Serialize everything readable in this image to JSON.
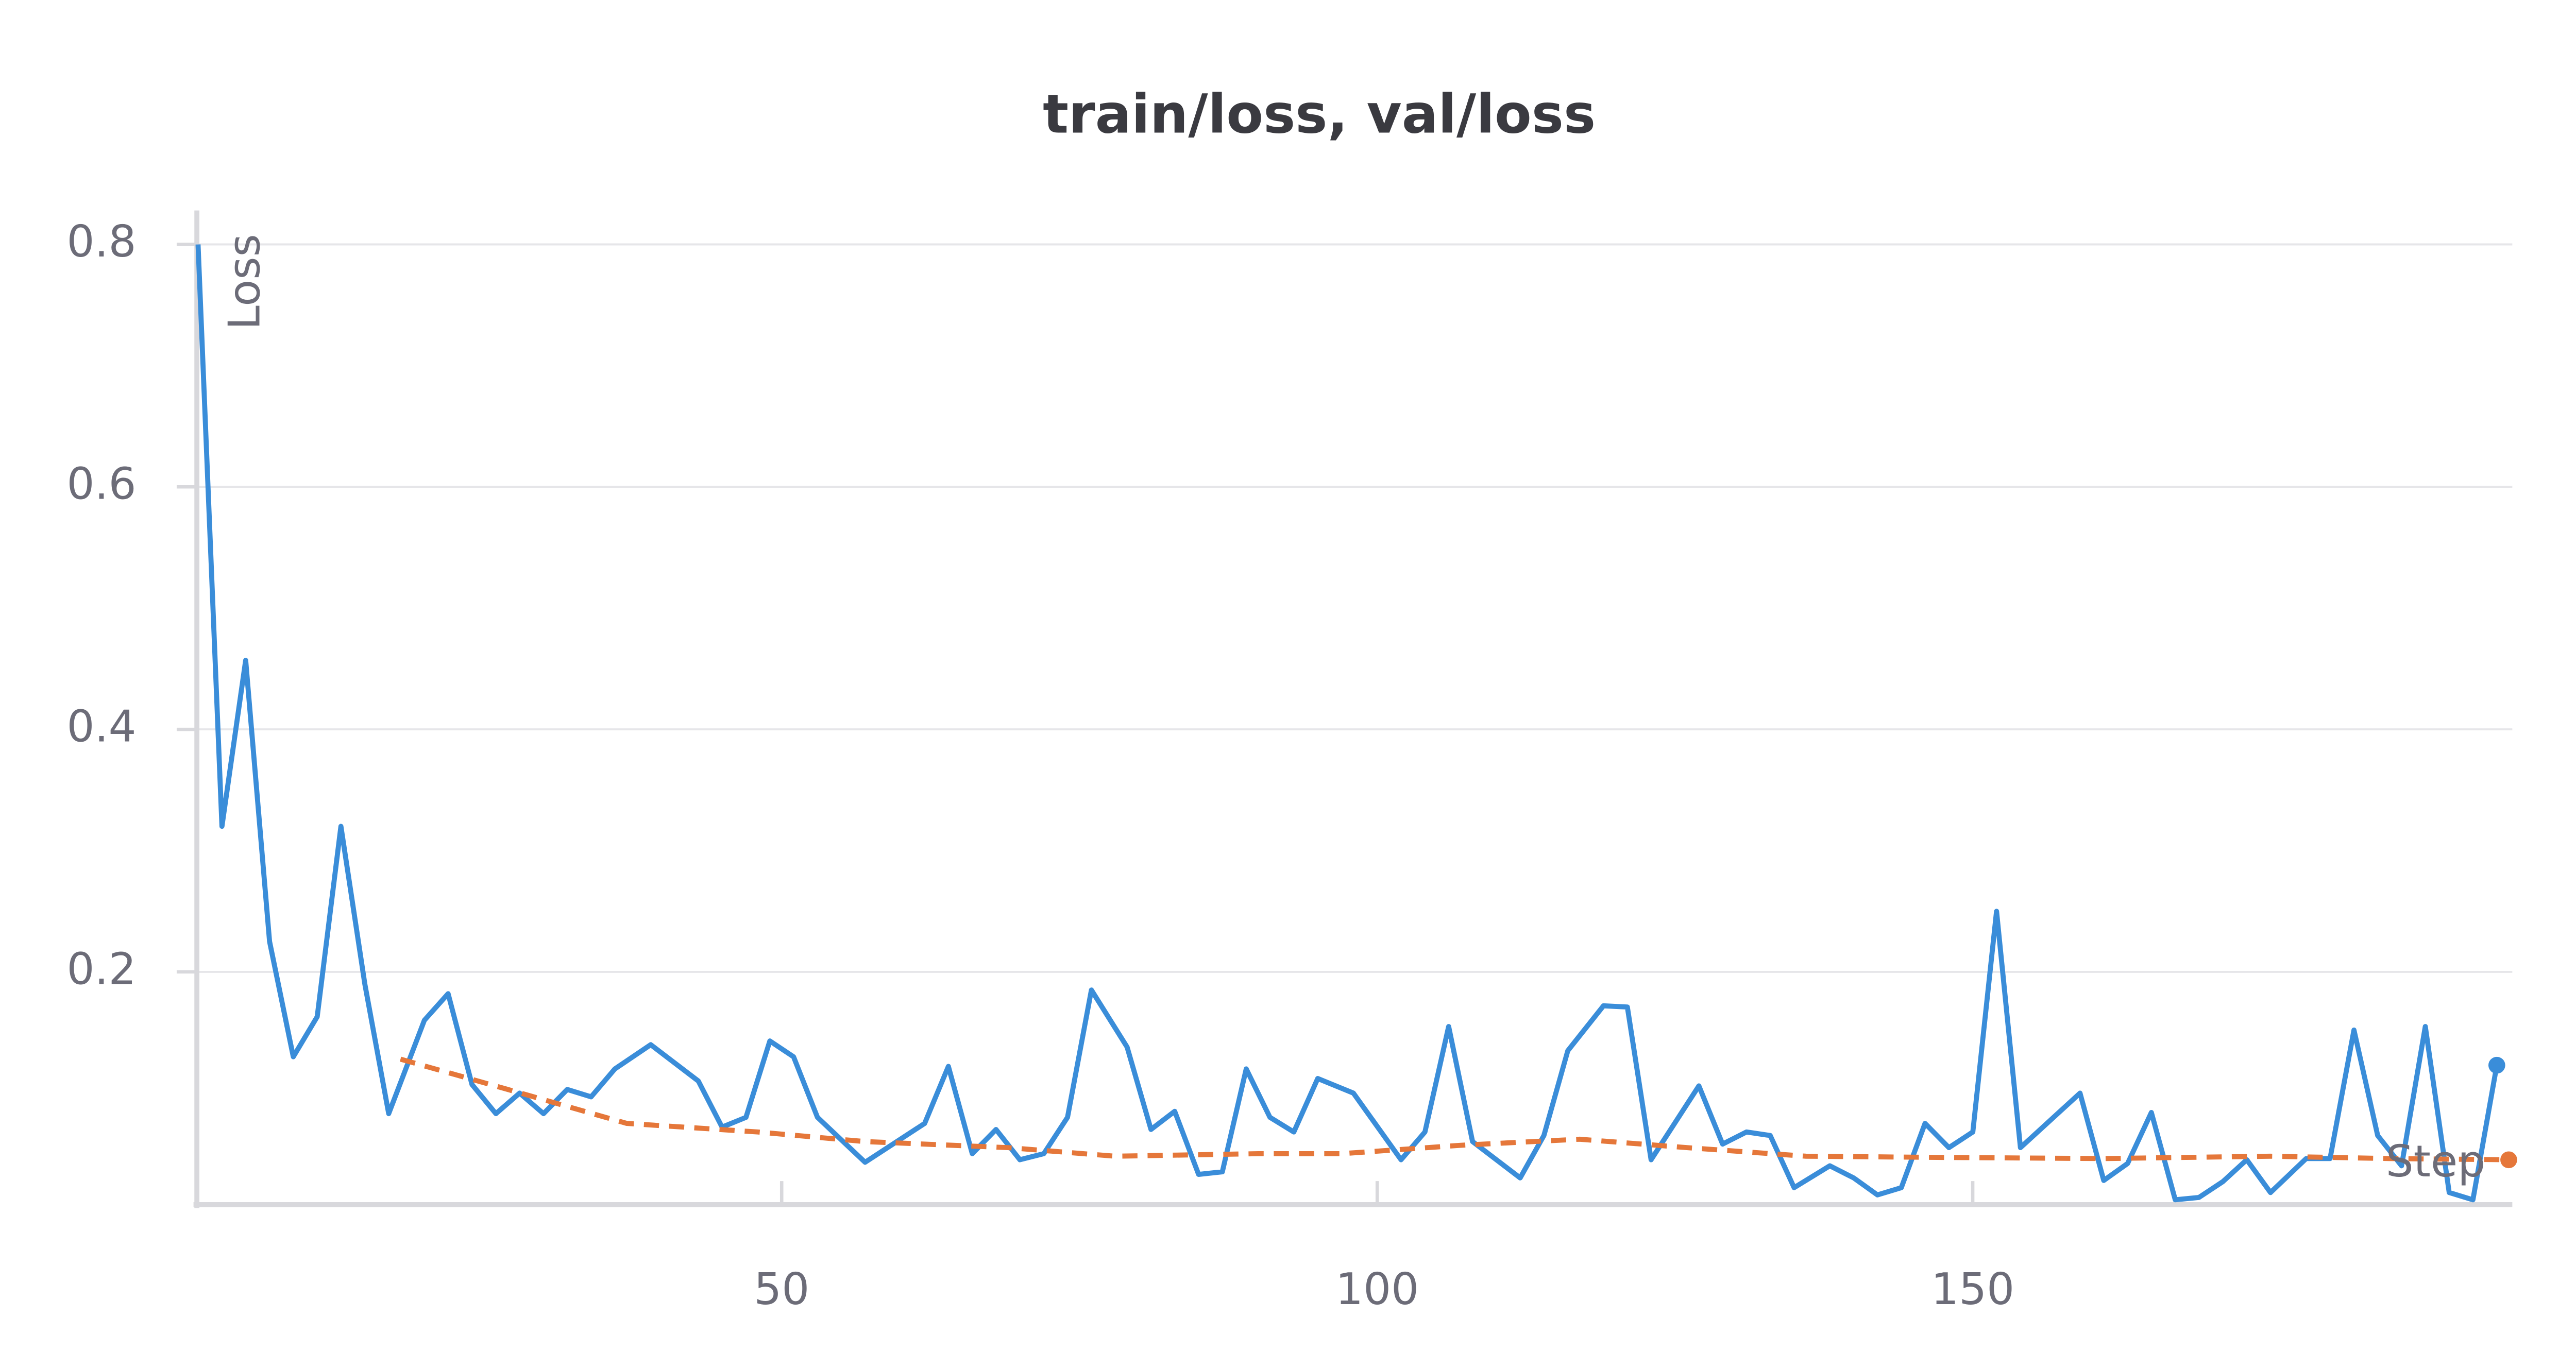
{
  "chart_data": {
    "type": "line",
    "title": "train/loss, val/loss",
    "x_label": "Step",
    "y_label": "Loss",
    "xlim": [
      0.9,
      195.3
    ],
    "ylim": [
      0.008,
      0.828
    ],
    "xticks": [
      50,
      100,
      150
    ],
    "yticks": [
      0.2,
      0.4,
      0.6,
      0.8
    ],
    "grid": true,
    "series": [
      {
        "name": "train/loss",
        "color": "#3a8dd9",
        "dashed": false,
        "x": [
          1,
          3,
          5,
          7,
          9,
          11,
          13,
          15,
          17,
          20,
          22,
          24,
          26,
          28,
          30,
          32,
          34,
          36,
          39,
          43,
          45,
          47,
          49,
          51,
          53,
          57,
          62,
          64,
          66,
          68,
          70,
          72,
          74,
          76,
          79,
          81,
          83,
          85,
          87,
          89,
          91,
          93,
          95,
          98,
          102,
          104,
          106,
          108,
          112,
          114,
          116,
          119,
          121,
          123,
          127,
          129,
          131,
          133,
          135,
          138,
          140,
          142,
          144,
          146,
          148,
          150,
          152,
          154,
          159,
          161,
          163,
          165,
          167,
          169,
          171,
          173,
          175,
          178,
          180,
          182,
          184,
          186,
          188,
          190,
          192,
          194
        ],
        "values": [
          0.8,
          0.32,
          0.457,
          0.225,
          0.13,
          0.163,
          0.32,
          0.19,
          0.083,
          0.16,
          0.182,
          0.107,
          0.083,
          0.1,
          0.083,
          0.103,
          0.097,
          0.12,
          0.14,
          0.11,
          0.072,
          0.08,
          0.143,
          0.13,
          0.08,
          0.043,
          0.075,
          0.122,
          0.05,
          0.07,
          0.045,
          0.05,
          0.08,
          0.185,
          0.138,
          0.07,
          0.085,
          0.033,
          0.035,
          0.12,
          0.08,
          0.068,
          0.112,
          0.1,
          0.045,
          0.068,
          0.155,
          0.06,
          0.03,
          0.065,
          0.135,
          0.172,
          0.171,
          0.045,
          0.106,
          0.058,
          0.068,
          0.065,
          0.022,
          0.04,
          0.03,
          0.016,
          0.022,
          0.075,
          0.055,
          0.068,
          0.25,
          0.055,
          0.1,
          0.028,
          0.042,
          0.084,
          0.012,
          0.014,
          0.027,
          0.045,
          0.018,
          0.046,
          0.046,
          0.152,
          0.065,
          0.04,
          0.155,
          0.018,
          0.012,
          0.123
        ]
      },
      {
        "name": "val/loss",
        "color": "#e5773a",
        "dashed": true,
        "x": [
          18,
          27,
          37,
          48,
          57,
          69,
          78,
          90,
          97,
          107,
          117,
          126,
          136,
          147,
          161,
          175,
          185,
          195
        ],
        "values": [
          0.128,
          0.103,
          0.075,
          0.068,
          0.06,
          0.055,
          0.048,
          0.05,
          0.05,
          0.057,
          0.062,
          0.055,
          0.048,
          0.047,
          0.046,
          0.048,
          0.046,
          0.045
        ]
      }
    ]
  }
}
